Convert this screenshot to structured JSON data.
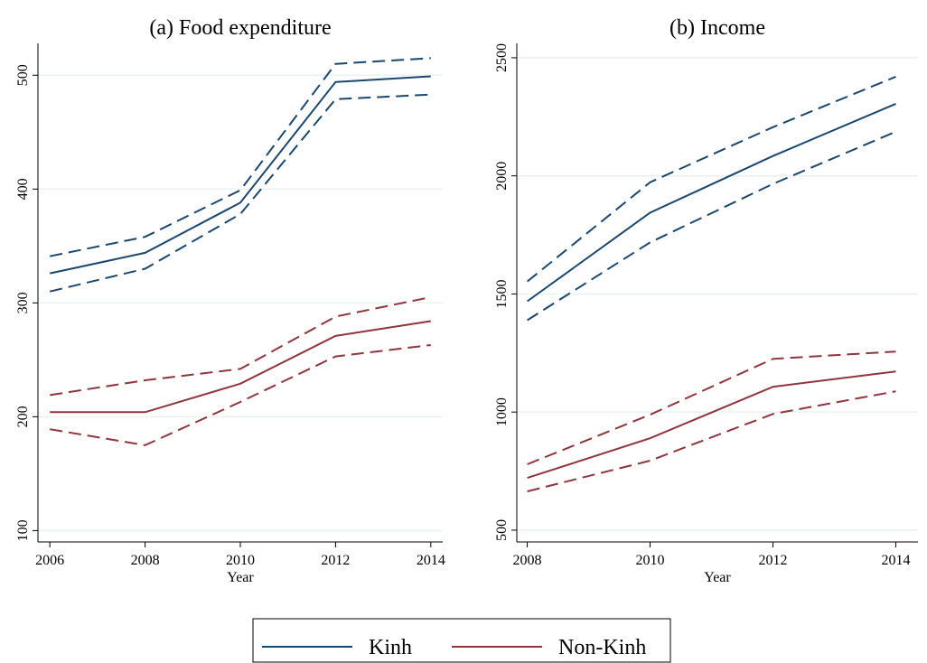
{
  "chart_data": [
    {
      "type": "line",
      "title": "(a) Food expenditure",
      "x_label": "Year",
      "x": [
        2006,
        2008,
        2010,
        2012,
        2014
      ],
      "xlim": [
        2005.75,
        2014.25
      ],
      "xticks": [
        2006,
        2008,
        2010,
        2012,
        2014
      ],
      "ylim": [
        90,
        528
      ],
      "yticks": [
        100,
        200,
        300,
        400,
        500
      ],
      "grid": true,
      "series": [
        {
          "name": "Kinh",
          "color": "#1a476f",
          "values": [
            326,
            344,
            388,
            494,
            499
          ],
          "ci_upper": [
            341,
            358,
            399,
            510,
            515
          ],
          "ci_lower": [
            310,
            330,
            378,
            479,
            483
          ]
        },
        {
          "name": "Non-Kinh",
          "color": "#90353b",
          "values": [
            204,
            204,
            229,
            271,
            284
          ],
          "ci_upper": [
            219,
            232,
            242,
            288,
            305
          ],
          "ci_lower": [
            189,
            175,
            213,
            253,
            263
          ]
        }
      ]
    },
    {
      "type": "line",
      "title": "(b) Income",
      "x_label": "Year",
      "x": [
        2008,
        2010,
        2012,
        2014
      ],
      "xlim": [
        2007.83,
        2014.36
      ],
      "xticks": [
        2008,
        2010,
        2012,
        2014
      ],
      "ylim": [
        450,
        2561
      ],
      "yticks": [
        500,
        1000,
        1500,
        2000,
        2500
      ],
      "grid": true,
      "series": [
        {
          "color": "#1a476f",
          "values": [
            1469,
            1844,
            2084,
            2305
          ],
          "ci_upper": [
            1553,
            1973,
            2206,
            2420
          ],
          "ci_lower": [
            1389,
            1718,
            1966,
            2187
          ]
        },
        {
          "color": "#90353b",
          "values": [
            721,
            889,
            1107,
            1172
          ],
          "ci_upper": [
            779,
            989,
            1225,
            1256
          ],
          "ci_lower": [
            664,
            794,
            992,
            1088
          ]
        }
      ]
    }
  ]
}
